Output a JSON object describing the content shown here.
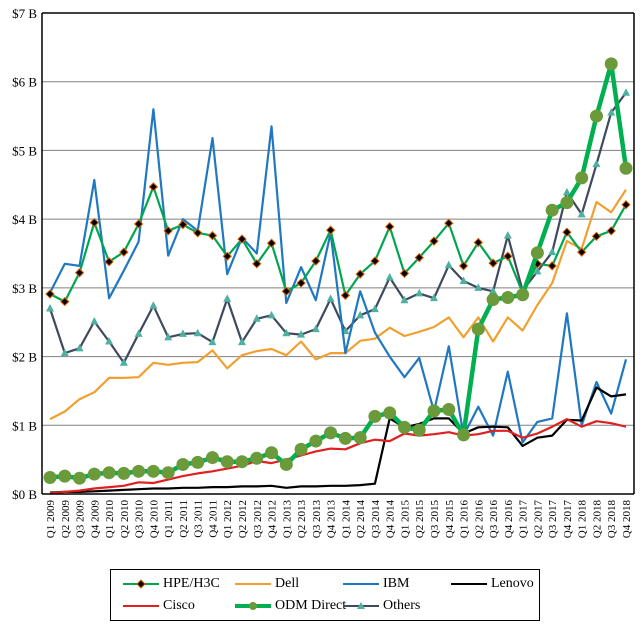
{
  "chart_data": {
    "type": "line",
    "title": "",
    "xlabel": "",
    "ylabel": "",
    "ylim": [
      0,
      7
    ],
    "y_ticks": [
      "$0 B",
      "$1 B",
      "$2 B",
      "$3 B",
      "$4 B",
      "$5 B",
      "$6 B",
      "$7 B"
    ],
    "grid": "horizontal",
    "legend_position": "bottom",
    "x": [
      "Q1 2009",
      "Q2 2009",
      "Q3 2009",
      "Q4 2009",
      "Q1 2010",
      "Q2 2010",
      "Q3 2010",
      "Q4 2010",
      "Q1 2011",
      "Q2 2011",
      "Q3 2011",
      "Q4 2011",
      "Q1 2012",
      "Q2 2012",
      "Q3 2012",
      "Q4 2012",
      "Q1 2013",
      "Q2 2013",
      "Q3 2013",
      "Q4 2013",
      "Q1 2014",
      "Q2 2014",
      "Q3 2014",
      "Q4 2014",
      "Q1 2015",
      "Q2 2015",
      "Q3 2015",
      "Q4 2015",
      "Q1 2016",
      "Q2 2016",
      "Q3 2016",
      "Q4 2016",
      "Q1 2017",
      "Q2 2017",
      "Q3 2017",
      "Q4 2017",
      "Q1 2018",
      "Q2 2018",
      "Q3 2018",
      "Q4 2018"
    ],
    "series": [
      {
        "name": "HPE/H3C",
        "color": "#00A64F",
        "marker": "diamond",
        "marker_color": "#000000",
        "values": [
          2.91,
          2.8,
          3.22,
          3.95,
          3.38,
          3.52,
          3.93,
          4.47,
          3.83,
          3.92,
          3.8,
          3.76,
          3.46,
          3.71,
          3.35,
          3.65,
          2.95,
          3.07,
          3.39,
          3.84,
          2.89,
          3.2,
          3.39,
          3.89,
          3.21,
          3.44,
          3.68,
          3.94,
          3.32,
          3.66,
          3.36,
          3.46,
          2.93,
          3.35,
          3.32,
          3.81,
          3.52,
          3.75,
          3.83,
          4.21
        ]
      },
      {
        "name": "Dell",
        "color": "#F0A030",
        "marker": "none",
        "values": [
          1.09,
          1.2,
          1.38,
          1.48,
          1.69,
          1.69,
          1.7,
          1.91,
          1.88,
          1.91,
          1.92,
          2.09,
          1.83,
          2.02,
          2.08,
          2.11,
          2.02,
          2.22,
          1.96,
          2.05,
          2.05,
          2.23,
          2.26,
          2.42,
          2.3,
          2.36,
          2.43,
          2.57,
          2.28,
          2.57,
          2.22,
          2.57,
          2.38,
          2.75,
          3.07,
          3.68,
          3.57,
          4.25,
          4.1,
          4.43
        ]
      },
      {
        "name": "IBM",
        "color": "#1F78C1",
        "marker": "none",
        "values": [
          2.93,
          3.35,
          3.32,
          4.57,
          2.85,
          3.25,
          3.67,
          5.6,
          3.47,
          4.0,
          3.83,
          5.18,
          3.2,
          3.73,
          3.5,
          5.35,
          2.78,
          3.3,
          2.82,
          3.8,
          2.05,
          2.95,
          2.35,
          2.0,
          1.7,
          1.98,
          1.2,
          2.15,
          0.85,
          1.27,
          0.85,
          1.78,
          0.75,
          1.05,
          1.1,
          2.63,
          1.0,
          1.63,
          1.17,
          1.96
        ]
      },
      {
        "name": "Lenovo",
        "color": "#000000",
        "marker": "none",
        "values": [
          0.02,
          0.03,
          0.03,
          0.04,
          0.05,
          0.06,
          0.07,
          0.08,
          0.08,
          0.09,
          0.09,
          0.1,
          0.1,
          0.11,
          0.11,
          0.12,
          0.09,
          0.11,
          0.11,
          0.12,
          0.12,
          0.13,
          0.15,
          1.1,
          0.97,
          1.02,
          1.1,
          1.1,
          0.88,
          0.97,
          0.98,
          0.97,
          0.7,
          0.82,
          0.85,
          1.08,
          1.07,
          1.55,
          1.42,
          1.45
        ]
      },
      {
        "name": "Cisco",
        "color": "#E02020",
        "marker": "none",
        "values": [
          0.01,
          0.03,
          0.05,
          0.08,
          0.1,
          0.12,
          0.17,
          0.16,
          0.21,
          0.26,
          0.3,
          0.33,
          0.37,
          0.41,
          0.48,
          0.45,
          0.5,
          0.56,
          0.62,
          0.66,
          0.65,
          0.74,
          0.79,
          0.77,
          0.88,
          0.85,
          0.87,
          0.9,
          0.85,
          0.87,
          0.92,
          0.92,
          0.82,
          0.88,
          0.98,
          1.09,
          0.98,
          1.06,
          1.03,
          0.98
        ]
      },
      {
        "name": "ODM Direct",
        "color": "#00B050",
        "marker": "circle",
        "marker_color": "#6A9A3A",
        "values": [
          0.24,
          0.26,
          0.23,
          0.29,
          0.31,
          0.3,
          0.33,
          0.33,
          0.31,
          0.43,
          0.46,
          0.53,
          0.47,
          0.47,
          0.52,
          0.6,
          0.43,
          0.65,
          0.77,
          0.89,
          0.81,
          0.82,
          1.13,
          1.18,
          0.97,
          0.93,
          1.21,
          1.23,
          0.86,
          2.4,
          2.83,
          2.86,
          2.9,
          3.51,
          4.13,
          4.24,
          4.6,
          5.5,
          6.26,
          4.74
        ]
      },
      {
        "name": "Others",
        "color": "#3F4A5E",
        "marker": "triangle",
        "marker_color": "#4FB0A0",
        "values": [
          2.7,
          2.05,
          2.12,
          2.51,
          2.22,
          1.91,
          2.33,
          2.74,
          2.28,
          2.33,
          2.34,
          2.21,
          2.84,
          2.21,
          2.55,
          2.6,
          2.34,
          2.32,
          2.4,
          2.84,
          2.37,
          2.6,
          2.69,
          3.15,
          2.82,
          2.92,
          2.85,
          3.33,
          3.1,
          3.0,
          2.95,
          3.76,
          2.96,
          3.24,
          3.52,
          4.39,
          4.07,
          4.8,
          5.55,
          5.84
        ]
      }
    ]
  },
  "legend": {
    "items": [
      "HPE/H3C",
      "Dell",
      "IBM",
      "Lenovo",
      "Cisco",
      "ODM Direct",
      "Others"
    ]
  }
}
